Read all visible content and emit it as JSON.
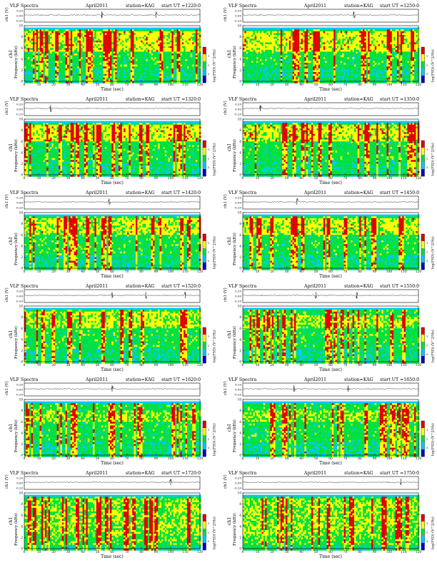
{
  "page_title": "",
  "panel_header": {
    "program": "VLF Spectra",
    "date": "April2011",
    "station": "station=KAG",
    "start_prefix": "start  UT  ="
  },
  "labels": {
    "amplitude_axis": "ch1 (V)",
    "freq_axis": "Frequency  (kHz)",
    "channel": "ch1",
    "time_axis": "Time  (sec)",
    "colorbar_label": "log(PSD) (V^2/Hz)"
  },
  "amplitude_ticks": [
    "0.20",
    "0.00",
    "-0.20"
  ],
  "freq_ticks": [
    "0",
    "2",
    "4",
    "6",
    "8",
    "10"
  ],
  "colorbar_ticks": [
    "-1",
    "-2",
    "-3"
  ],
  "colors": {
    "low": "#0000c8",
    "mid_low": "#00c8ff",
    "mid": "#00e040",
    "mid_high": "#ffff00",
    "high": "#e00000"
  },
  "chart_data": [
    {
      "type": "heatmap",
      "start_ut": "1220:0",
      "x_range": [
        0,
        120
      ],
      "y_range": [
        0,
        10
      ],
      "x_ticks": [
        0,
        10,
        20,
        30,
        40,
        50,
        60,
        70,
        80,
        90,
        100,
        110,
        120
      ],
      "intensity": "high",
      "red_band_khz": [
        5.5,
        9
      ],
      "spike_times_sec": [
        53,
        90
      ]
    },
    {
      "type": "heatmap",
      "start_ut": "1250:0",
      "x_range": [
        0,
        120
      ],
      "y_range": [
        0,
        10
      ],
      "x_ticks": [
        0,
        10,
        20,
        30,
        40,
        50,
        60,
        70,
        80,
        90,
        100,
        110,
        120
      ],
      "intensity": "high",
      "red_band_khz": [
        5.5,
        9
      ],
      "spike_times_sec": [
        76
      ]
    },
    {
      "type": "heatmap",
      "start_ut": "1320:0",
      "x_range": [
        0,
        120
      ],
      "y_range": [
        0,
        10
      ],
      "x_ticks": [
        0,
        10,
        20,
        30,
        40,
        50,
        60,
        70,
        80,
        90,
        100,
        110,
        120
      ],
      "intensity": "high",
      "red_band_khz": [
        6,
        9
      ],
      "spike_times_sec": [
        18
      ]
    },
    {
      "type": "heatmap",
      "start_ut": "1350:0",
      "x_range": [
        0,
        120
      ],
      "y_range": [
        0,
        10
      ],
      "x_ticks": [
        0,
        10,
        20,
        30,
        40,
        50,
        60,
        70,
        80,
        90,
        100,
        110,
        120
      ],
      "intensity": "high",
      "red_band_khz": [
        6,
        9
      ],
      "spike_times_sec": [
        12
      ]
    },
    {
      "type": "heatmap",
      "start_ut": "1420:0",
      "x_range": [
        0,
        120
      ],
      "y_range": [
        0,
        10
      ],
      "x_ticks": [
        0,
        10,
        20,
        30,
        40,
        50,
        60,
        70,
        80,
        90,
        100,
        110,
        120
      ],
      "intensity": "medium-high",
      "red_band_khz": [
        6,
        9
      ],
      "spike_times_sec": [
        58
      ]
    },
    {
      "type": "heatmap",
      "start_ut": "1450:0",
      "x_range": [
        0,
        120
      ],
      "y_range": [
        0,
        10
      ],
      "x_ticks": [
        0,
        10,
        20,
        30,
        40,
        50,
        60,
        70,
        80,
        90,
        100,
        110,
        120
      ],
      "intensity": "medium-high",
      "red_band_khz": [
        6,
        9
      ],
      "spike_times_sec": [
        37
      ]
    },
    {
      "type": "heatmap",
      "start_ut": "1520:0",
      "x_range": [
        0,
        120
      ],
      "y_range": [
        0,
        10
      ],
      "x_ticks": [
        0,
        10,
        20,
        30,
        40,
        50,
        60,
        70,
        80,
        90,
        100,
        110,
        120
      ],
      "intensity": "medium",
      "red_band_khz": [
        6,
        9
      ],
      "spike_times_sec": [
        60,
        83,
        110
      ]
    },
    {
      "type": "heatmap",
      "start_ut": "1550:0",
      "x_range": [
        0,
        120
      ],
      "y_range": [
        0,
        10
      ],
      "x_ticks": [
        0,
        10,
        20,
        30,
        40,
        50,
        60,
        70,
        80,
        90,
        100,
        110,
        120
      ],
      "intensity": "medium",
      "red_band_khz": [
        6,
        8.5
      ],
      "spike_times_sec": [
        50,
        78
      ]
    },
    {
      "type": "heatmap",
      "start_ut": "1620:0",
      "x_range": [
        0,
        120
      ],
      "y_range": [
        0,
        10
      ],
      "x_ticks": [
        0,
        10,
        20,
        30,
        40,
        50,
        60,
        70,
        80,
        90,
        100,
        110,
        120
      ],
      "intensity": "low",
      "red_band_khz": [
        6,
        8
      ],
      "spike_times_sec": [
        60
      ]
    },
    {
      "type": "heatmap",
      "start_ut": "1650:0",
      "x_range": [
        0,
        120
      ],
      "y_range": [
        0,
        10
      ],
      "x_ticks": [
        0,
        10,
        20,
        30,
        40,
        50,
        60,
        70,
        80,
        90,
        100,
        110,
        120
      ],
      "intensity": "low",
      "red_band_khz": [
        6,
        8
      ],
      "spike_times_sec": [
        35,
        72
      ]
    },
    {
      "type": "heatmap",
      "start_ut": "1720:0",
      "x_range": [
        0,
        120
      ],
      "y_range": [
        0,
        10
      ],
      "x_ticks": [
        0,
        10,
        20,
        30,
        40,
        50,
        60,
        70,
        80,
        90,
        100,
        110,
        120
      ],
      "intensity": "low",
      "red_band_khz": [
        1,
        9
      ],
      "spike_times_sec": [
        100
      ]
    },
    {
      "type": "heatmap",
      "start_ut": "1750:0",
      "x_range": [
        0,
        120
      ],
      "y_range": [
        0,
        10
      ],
      "x_ticks": [
        0,
        10,
        20,
        30,
        40,
        50,
        60,
        70,
        80,
        90,
        100,
        110,
        120
      ],
      "intensity": "low",
      "red_band_khz": [
        1,
        9
      ],
      "spike_times_sec": [
        108
      ]
    }
  ]
}
